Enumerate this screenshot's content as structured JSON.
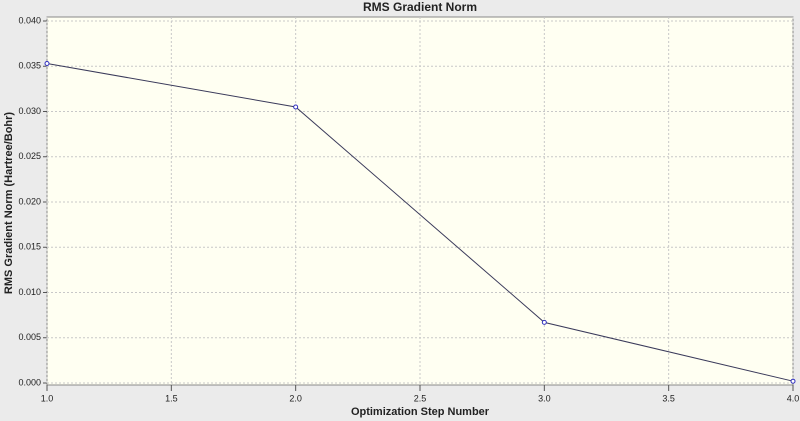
{
  "chart_data": {
    "type": "line",
    "title": "RMS Gradient Norm",
    "x_label": "Optimization Step Number",
    "y_label": "RMS Gradient Norm (Hartree/Bohr)",
    "x": [
      1,
      2,
      3,
      4
    ],
    "series": [
      {
        "name": "RMS Gradient Norm",
        "color": "#3a3a5a",
        "values": [
          0.0353,
          0.0305,
          0.0067,
          0.0002
        ]
      }
    ],
    "xlim": [
      1,
      4
    ],
    "xticks": [
      {
        "value": 1,
        "label": "1.0"
      },
      1.5,
      {
        "value": 2,
        "label": "2.0"
      },
      2.5,
      {
        "value": 3,
        "label": "3.0"
      },
      3.5,
      {
        "value": 4,
        "label": "4.0"
      }
    ],
    "ylim": [
      0,
      0.04
    ],
    "yticks": [
      {
        "value": 0,
        "label": "0.000"
      },
      0.005,
      {
        "value": 0.01,
        "label": "0.010"
      },
      0.015,
      {
        "value": 0.02,
        "label": "0.020"
      },
      0.025,
      {
        "value": 0.03,
        "label": "0.030"
      },
      0.035,
      {
        "value": 0.04,
        "label": "0.040"
      }
    ],
    "grid": true
  }
}
